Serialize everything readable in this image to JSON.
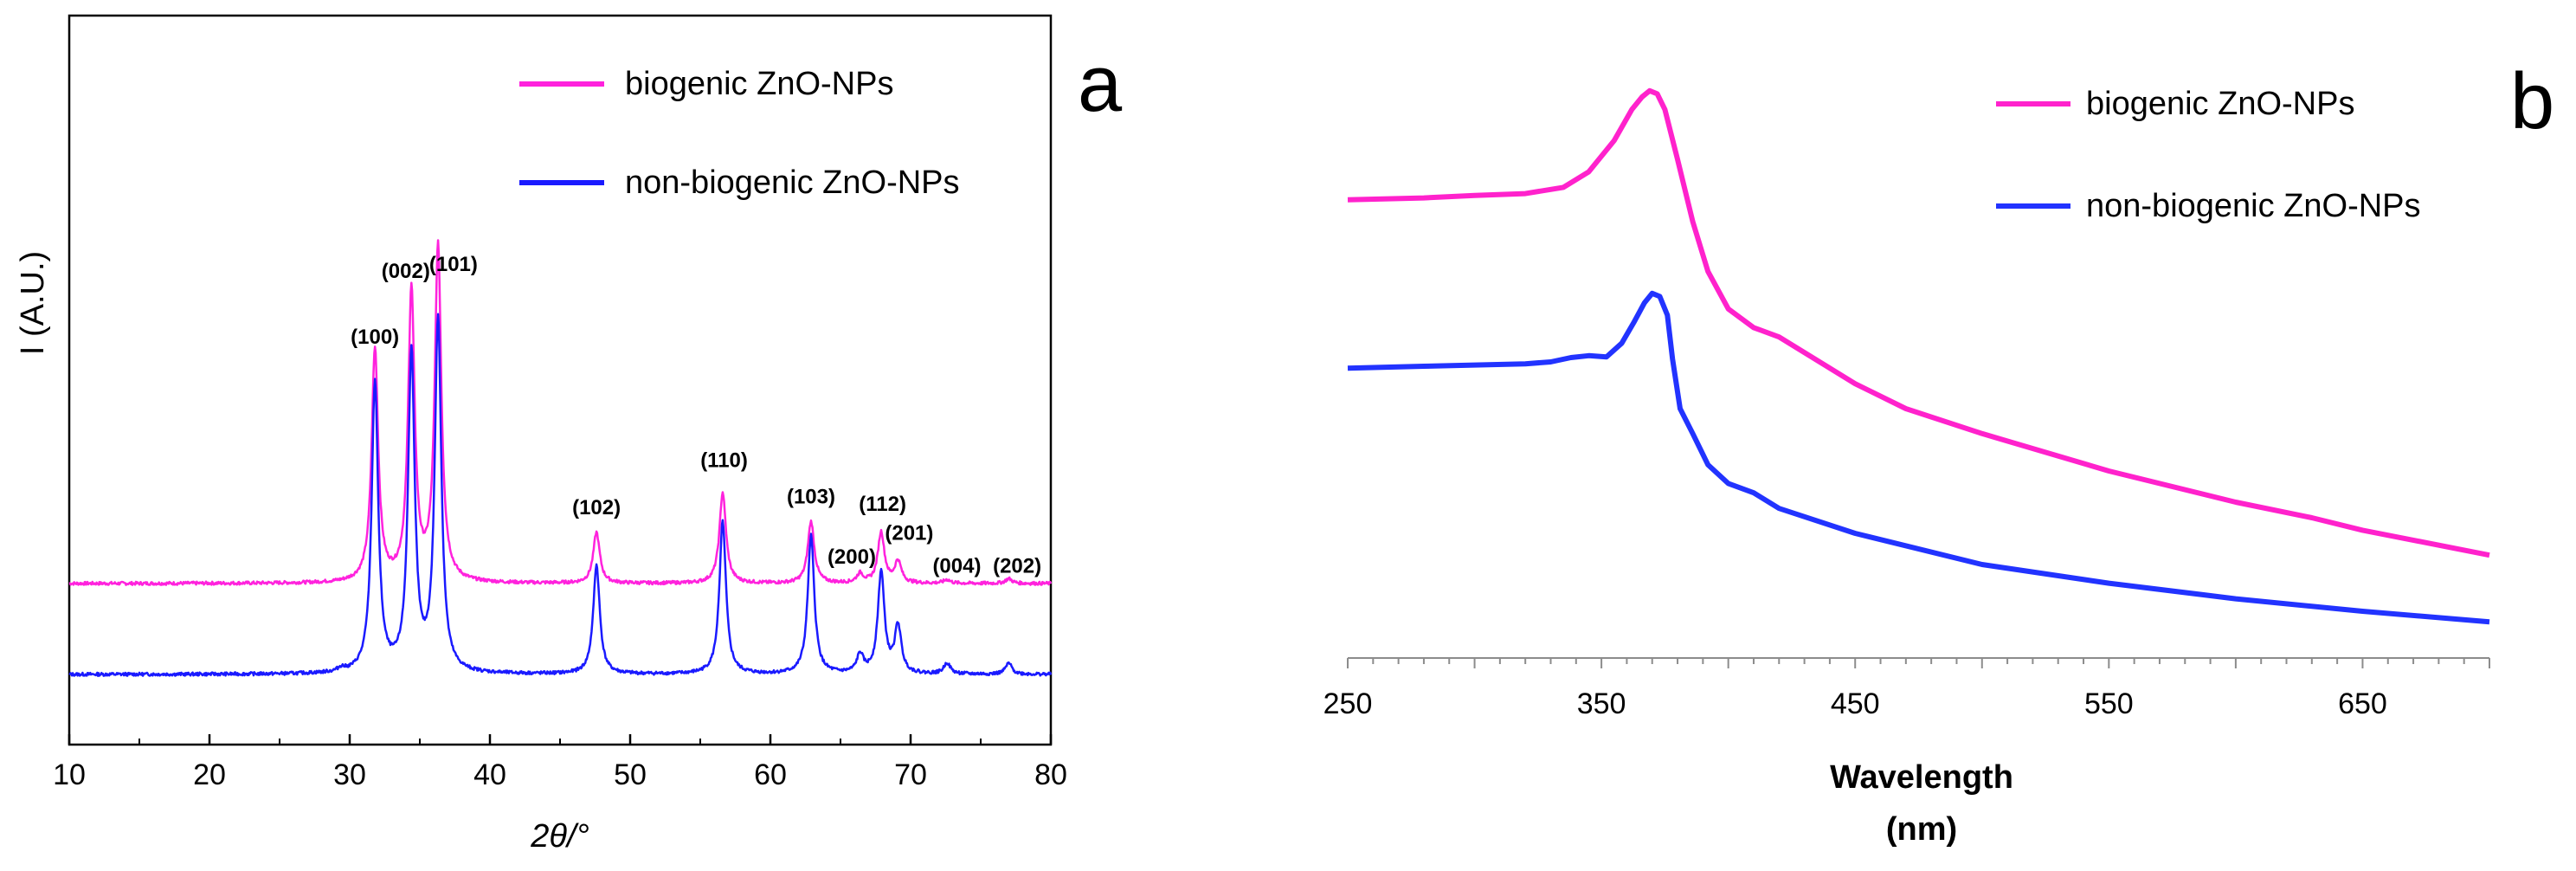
{
  "chart_data": [
    {
      "panel": "a",
      "type": "line",
      "xlabel": "2θ/°",
      "ylabel": "I (A.U.)",
      "xlim": [
        10,
        80
      ],
      "xticks": [
        10,
        20,
        30,
        40,
        50,
        60,
        70,
        80
      ],
      "colors": {
        "biogenic": "#ff22dd",
        "non_biogenic": "#1a1aff"
      },
      "legend": [
        "biogenic ZnO-NPs",
        "non-biogenic ZnO-NPs"
      ],
      "series": [
        {
          "name": "biogenic ZnO-NPs",
          "key": "biogenic",
          "baseline": 30,
          "peaks": [
            [
              31.8,
              64
            ],
            [
              34.4,
              80
            ],
            [
              36.3,
              92
            ],
            [
              47.6,
              14
            ],
            [
              56.6,
              25
            ],
            [
              62.9,
              17
            ],
            [
              66.4,
              2.5
            ],
            [
              67.9,
              14
            ],
            [
              69.1,
              6
            ],
            [
              72.6,
              1
            ],
            [
              77.0,
              1.3
            ]
          ]
        },
        {
          "name": "non-biogenic ZnO-NPs",
          "key": "non_biogenic",
          "baseline": 5,
          "peaks": [
            [
              29.4,
              1
            ],
            [
              31.8,
              80
            ],
            [
              34.4,
              88
            ],
            [
              36.3,
              97
            ],
            [
              47.6,
              30
            ],
            [
              56.6,
              42
            ],
            [
              62.9,
              38
            ],
            [
              66.4,
              5
            ],
            [
              67.9,
              28
            ],
            [
              69.1,
              13
            ],
            [
              72.6,
              3
            ],
            [
              77.0,
              3
            ]
          ]
        }
      ],
      "peak_labels": [
        {
          "text": "(100)",
          "x": 31.8,
          "y": 96
        },
        {
          "text": "(002)",
          "x": 34.0,
          "y": 114
        },
        {
          "text": "(101)",
          "x": 37.4,
          "y": 116
        },
        {
          "text": "(102)",
          "x": 47.6,
          "y": 49
        },
        {
          "text": "(110)",
          "x": 56.7,
          "y": 62
        },
        {
          "text": "(103)",
          "x": 62.9,
          "y": 52
        },
        {
          "text": "(112)",
          "x": 68.0,
          "y": 50
        },
        {
          "text": "(200)",
          "x": 65.8,
          "y": 35.5
        },
        {
          "text": "(201)",
          "x": 69.9,
          "y": 42
        },
        {
          "text": "(004)",
          "x": 73.3,
          "y": 33
        },
        {
          "text": "(202)",
          "x": 77.6,
          "y": 33
        }
      ]
    },
    {
      "panel": "b",
      "type": "line",
      "xlabel": "Wavelength",
      "xlabel_unit": "(nm)",
      "xlim": [
        250,
        700
      ],
      "xticks": [
        250,
        350,
        450,
        550,
        650
      ],
      "colors": {
        "biogenic": "#ff22cc",
        "non_biogenic": "#2233ff"
      },
      "legend": [
        "biogenic ZnO-NPs",
        "non-biogenic ZnO-NPs"
      ],
      "series": [
        {
          "name": "biogenic ZnO-NPs",
          "key": "biogenic",
          "x": [
            250,
            280,
            300,
            320,
            335,
            345,
            355,
            362,
            366,
            369,
            372,
            375,
            380,
            386,
            392,
            400,
            410,
            420,
            430,
            450,
            470,
            500,
            550,
            600,
            630,
            650,
            700
          ],
          "y": [
            0.735,
            0.738,
            0.742,
            0.745,
            0.755,
            0.78,
            0.83,
            0.88,
            0.9,
            0.91,
            0.905,
            0.88,
            0.8,
            0.7,
            0.62,
            0.56,
            0.53,
            0.515,
            0.49,
            0.44,
            0.4,
            0.36,
            0.3,
            0.25,
            0.225,
            0.205,
            0.165
          ]
        },
        {
          "name": "non-biogenic ZnO-NPs",
          "key": "non_biogenic",
          "x": [
            250,
            280,
            300,
            320,
            330,
            338,
            345,
            352,
            358,
            363,
            367,
            370,
            373,
            376,
            378,
            381,
            386,
            392,
            400,
            410,
            420,
            450,
            500,
            550,
            600,
            650,
            700
          ],
          "y": [
            0.465,
            0.468,
            0.47,
            0.472,
            0.475,
            0.482,
            0.485,
            0.483,
            0.505,
            0.54,
            0.57,
            0.585,
            0.58,
            0.55,
            0.48,
            0.4,
            0.36,
            0.31,
            0.28,
            0.265,
            0.24,
            0.2,
            0.15,
            0.12,
            0.095,
            0.075,
            0.058
          ]
        }
      ]
    }
  ]
}
